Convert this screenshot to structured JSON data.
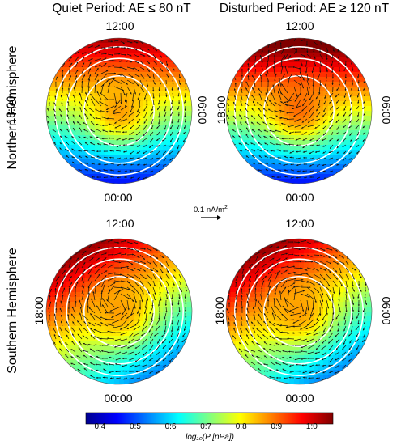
{
  "columns": [
    {
      "title": "Quiet Period: AE ≤ 80 nT"
    },
    {
      "title": "Disturbed Period: AE ≥ 120 nT"
    }
  ],
  "rows": [
    {
      "title": "Northern Hemisphere"
    },
    {
      "title": "Southern Hemisphere"
    }
  ],
  "time_labels": {
    "top": "12:00",
    "bottom": "00:00",
    "left": "18:00",
    "right": "06:00"
  },
  "panels": [
    {
      "id": "nh-quiet",
      "high_side": "top",
      "pole_strength": "low"
    },
    {
      "id": "nh-dist",
      "high_side": "top",
      "pole_strength": "low"
    },
    {
      "id": "sh-quiet",
      "high_side": "top-left",
      "pole_strength": "mid"
    },
    {
      "id": "sh-dist",
      "high_side": "top-left",
      "pole_strength": "mid"
    }
  ],
  "reference_arrow": {
    "label": "0.1 nA/m",
    "superscript": "2"
  },
  "colorbar": {
    "ticks": [
      "0.4",
      "0.5",
      "0.6",
      "0.7",
      "0.8",
      "0.9",
      "1.0"
    ],
    "min": 0.36,
    "max": 1.06,
    "label": "log₁₀(P [nPa])",
    "colors": [
      "#00008f",
      "#0000ff",
      "#0080ff",
      "#00ffff",
      "#80ff80",
      "#ffff00",
      "#ff8000",
      "#ff0000",
      "#800000"
    ]
  }
}
